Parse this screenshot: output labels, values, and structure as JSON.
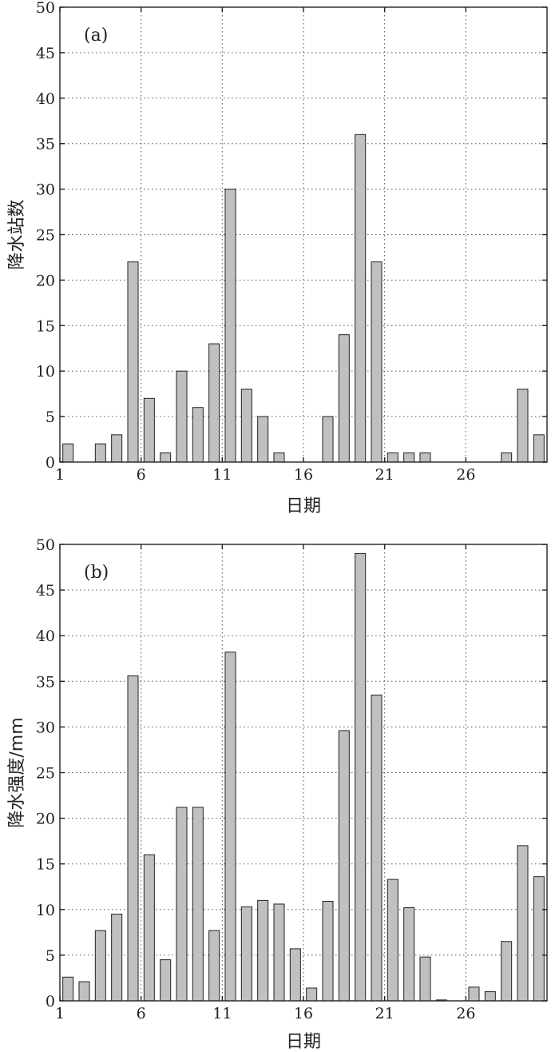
{
  "chart_data": [
    {
      "type": "bar",
      "panel_label": "(a)",
      "xlabel": "日期",
      "ylabel": "降水站数",
      "ylim": [
        0,
        50
      ],
      "yticks": [
        0,
        5,
        10,
        15,
        20,
        25,
        30,
        35,
        40,
        45,
        50
      ],
      "xlim": [
        1,
        30
      ],
      "xticks": [
        1,
        6,
        11,
        16,
        21,
        26
      ],
      "grid": true,
      "x": [
        1,
        2,
        3,
        4,
        5,
        6,
        7,
        8,
        9,
        10,
        11,
        12,
        13,
        14,
        15,
        16,
        17,
        18,
        19,
        20,
        21,
        22,
        23,
        24,
        25,
        26,
        27,
        28,
        29,
        30
      ],
      "values": [
        2,
        0,
        2,
        3,
        22,
        7,
        1,
        10,
        6,
        13,
        30,
        8,
        5,
        1,
        0,
        0,
        5,
        14,
        36,
        22,
        1,
        1,
        1,
        0,
        0,
        0,
        0,
        1,
        8,
        3
      ]
    },
    {
      "type": "bar",
      "panel_label": "(b)",
      "xlabel": "日期",
      "ylabel": "降水强度/mm",
      "ylim": [
        0,
        50
      ],
      "yticks": [
        0,
        5,
        10,
        15,
        20,
        25,
        30,
        35,
        40,
        45,
        50
      ],
      "xlim": [
        1,
        30
      ],
      "xticks": [
        1,
        6,
        11,
        16,
        21,
        26
      ],
      "grid": true,
      "x": [
        1,
        2,
        3,
        4,
        5,
        6,
        7,
        8,
        9,
        10,
        11,
        12,
        13,
        14,
        15,
        16,
        17,
        18,
        19,
        20,
        21,
        22,
        23,
        24,
        25,
        26,
        27,
        28,
        29,
        30
      ],
      "values": [
        2.6,
        2.1,
        7.7,
        9.5,
        35.6,
        16.0,
        4.5,
        21.2,
        21.2,
        7.7,
        38.2,
        10.3,
        11.0,
        10.6,
        5.7,
        1.4,
        10.9,
        29.6,
        49.0,
        33.5,
        13.3,
        10.2,
        4.8,
        0.1,
        0,
        1.5,
        1.0,
        6.5,
        17.0,
        13.6
      ]
    }
  ]
}
